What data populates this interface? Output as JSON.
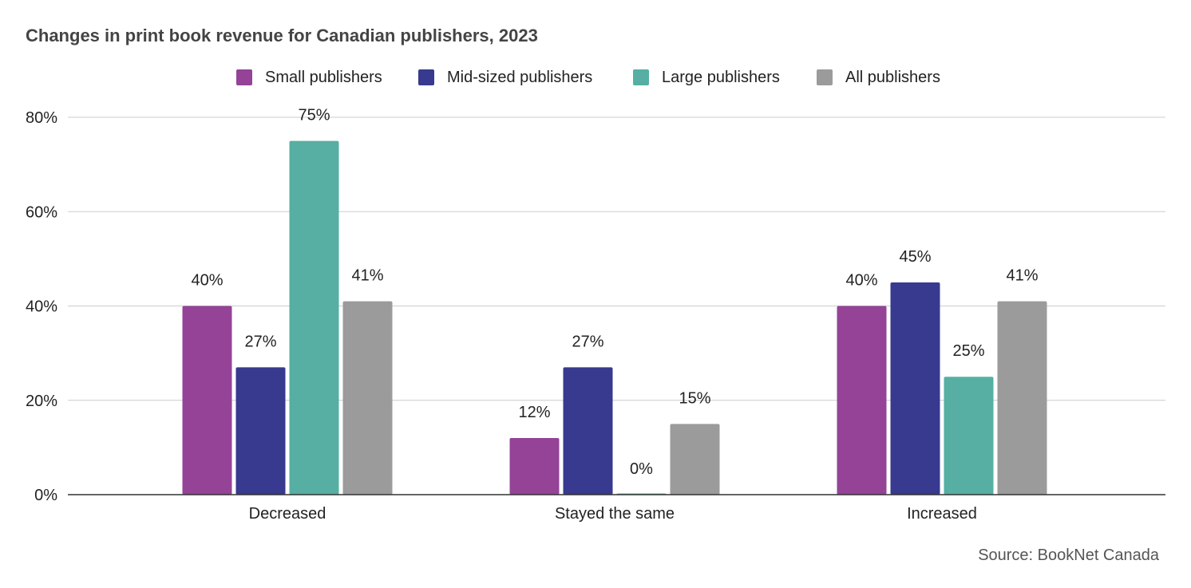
{
  "chart_data": {
    "type": "bar",
    "title": "Changes in print book revenue for Canadian publishers, 2023",
    "categories": [
      "Decreased",
      "Stayed the same",
      "Increased"
    ],
    "series": [
      {
        "name": "Small publishers",
        "color": "#944397",
        "values": [
          40,
          12,
          40
        ],
        "labels": [
          "40%",
          "12%",
          "40%"
        ]
      },
      {
        "name": "Mid-sized publishers",
        "color": "#373a8f",
        "values": [
          27,
          27,
          45
        ],
        "labels": [
          "27%",
          "27%",
          "45%"
        ]
      },
      {
        "name": "Large publishers",
        "color": "#56afa2",
        "values": [
          75,
          0,
          25
        ],
        "labels": [
          "75%",
          "0%",
          "25%"
        ]
      },
      {
        "name": "All publishers",
        "color": "#9b9b9b",
        "values": [
          41,
          15,
          41
        ],
        "labels": [
          "41%",
          "15%",
          "41%"
        ]
      }
    ],
    "y_ticks": [
      "0%",
      "20%",
      "40%",
      "60%",
      "80%"
    ],
    "ylim": [
      0,
      80
    ],
    "grid": true,
    "legend_position": "top-center",
    "source": "Source: BookNet Canada"
  }
}
